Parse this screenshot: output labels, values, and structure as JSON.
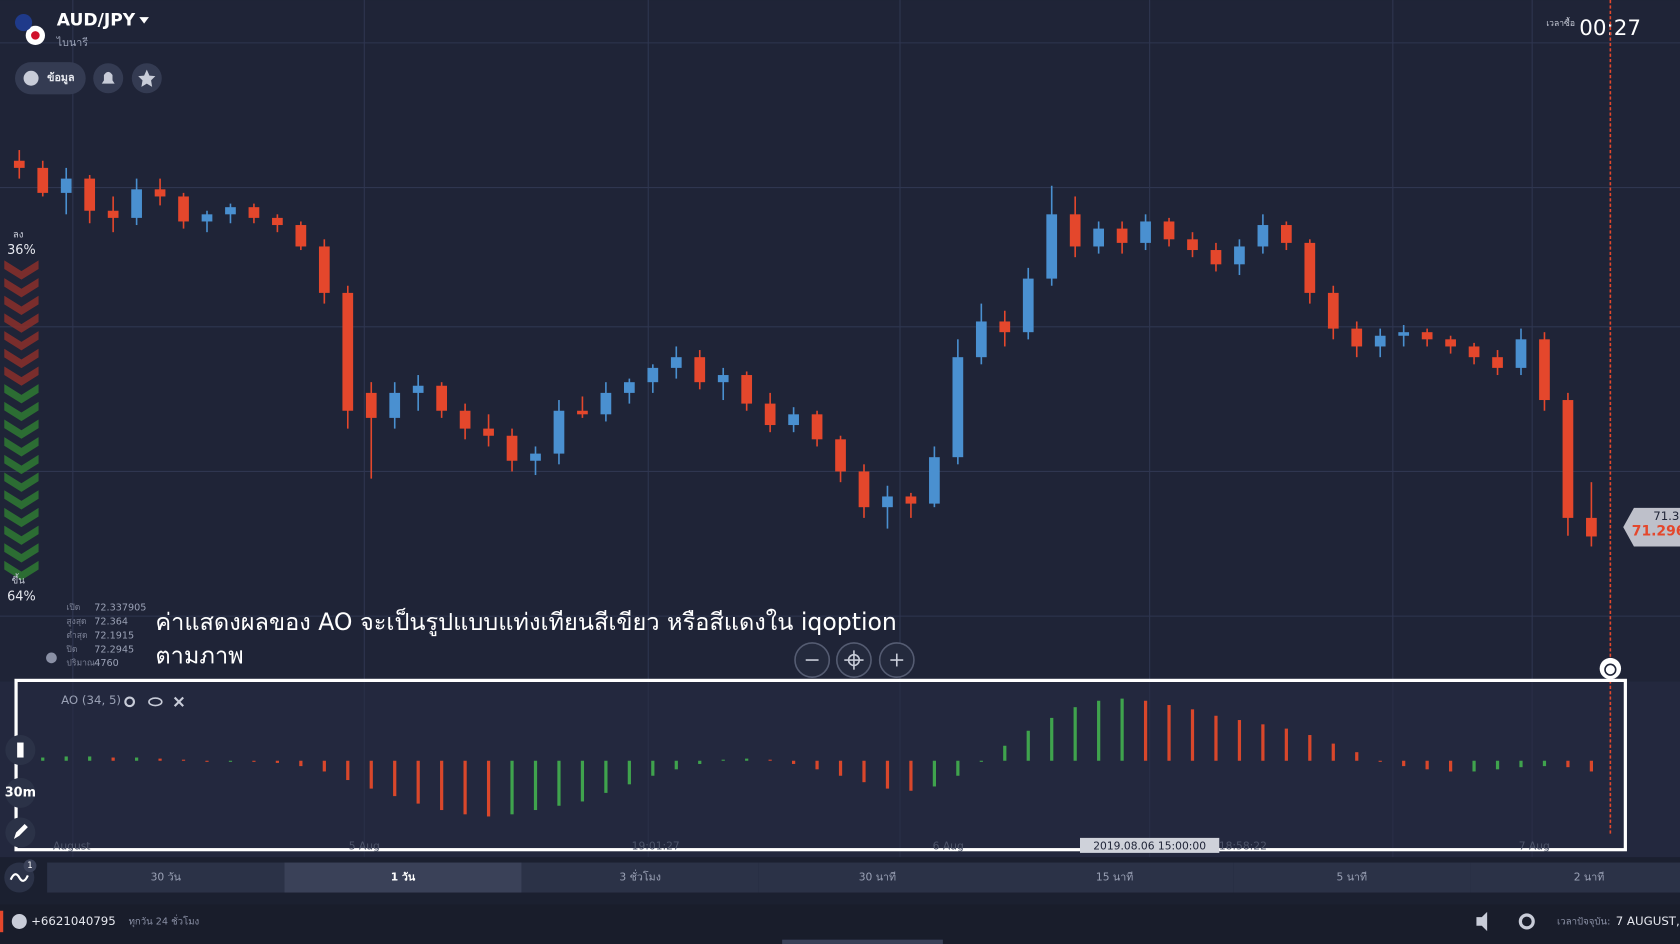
{
  "header": {
    "pair": "AUD/JPY",
    "subtitle": "ไบนารี",
    "info_button": "ข้อมูล",
    "timer_label": "เวลาซื้อ",
    "timer": "00:27"
  },
  "sentiment": {
    "down_label": "ลง",
    "down_pct": "36%",
    "up_label": "ขึ้น",
    "up_pct": "64%"
  },
  "ohlc_info": {
    "labels": [
      "เปิด",
      "สูงสุด",
      "ต่ำสุด",
      "ปิด",
      "ปริมาณ"
    ],
    "values": [
      72.337905,
      72.364,
      72.1915,
      72.2945,
      4760
    ]
  },
  "caption": [
    "ค่าแสดงผลของ AO จะเป็นรูปแบบแท่งเทียนสีเขียว หรือสีแดงใน iqoption",
    "ตามภาพ"
  ],
  "price_labels": [
    "71.3",
    "71.296"
  ],
  "time_labels": [
    "August",
    "5 Aug",
    "19:01:27",
    "6 Aug",
    "2019.08.06 15:00:00",
    "18:58:22",
    "7 Aug"
  ],
  "side_tools": {
    "timeframe": "30m",
    "badge": "1"
  },
  "periods": {
    "items": [
      "30 วัน",
      "1 วัน",
      "3 ชั่วโมง",
      "30 นาที",
      "15 นาที",
      "5 นาที",
      "2 นาที"
    ],
    "active": 1
  },
  "footer": {
    "phone": "+6621040795",
    "hours": "ทุกวัน 24 ชั่วโมง",
    "time_label": "เวลาปัจจุบัน:",
    "date": "7 AUGUST,"
  },
  "chart_data": [
    {
      "type": "candlestick",
      "up_color": "#4a90d0",
      "down_color": "#e4472c",
      "ylim": [
        71.0,
        73.7
      ],
      "ohlc": [
        [
          73.4,
          73.46,
          73.3,
          73.36
        ],
        [
          73.36,
          73.4,
          73.2,
          73.22
        ],
        [
          73.22,
          73.36,
          73.1,
          73.3
        ],
        [
          73.3,
          73.32,
          73.05,
          73.12
        ],
        [
          73.12,
          73.2,
          73.0,
          73.08
        ],
        [
          73.08,
          73.3,
          73.04,
          73.24
        ],
        [
          73.24,
          73.3,
          73.15,
          73.2
        ],
        [
          73.2,
          73.22,
          73.02,
          73.06
        ],
        [
          73.06,
          73.12,
          73.0,
          73.1
        ],
        [
          73.1,
          73.16,
          73.05,
          73.14
        ],
        [
          73.14,
          73.16,
          73.05,
          73.08
        ],
        [
          73.08,
          73.1,
          73.0,
          73.04
        ],
        [
          73.04,
          73.06,
          72.9,
          72.92
        ],
        [
          72.92,
          72.96,
          72.6,
          72.66
        ],
        [
          72.66,
          72.7,
          71.9,
          72.0
        ],
        [
          72.1,
          72.16,
          71.62,
          71.96
        ],
        [
          71.96,
          72.16,
          71.9,
          72.1
        ],
        [
          72.1,
          72.2,
          72.0,
          72.14
        ],
        [
          72.14,
          72.16,
          71.96,
          72.0
        ],
        [
          72.0,
          72.04,
          71.84,
          71.9
        ],
        [
          71.9,
          71.98,
          71.8,
          71.86
        ],
        [
          71.86,
          71.9,
          71.66,
          71.72
        ],
        [
          71.72,
          71.8,
          71.64,
          71.76
        ],
        [
          71.76,
          72.06,
          71.7,
          72.0
        ],
        [
          72.0,
          72.08,
          71.96,
          71.98
        ],
        [
          71.98,
          72.16,
          71.94,
          72.1
        ],
        [
          72.1,
          72.18,
          72.04,
          72.16
        ],
        [
          72.16,
          72.26,
          72.1,
          72.24
        ],
        [
          72.24,
          72.36,
          72.18,
          72.3
        ],
        [
          72.3,
          72.34,
          72.12,
          72.16
        ],
        [
          72.16,
          72.24,
          72.06,
          72.2
        ],
        [
          72.2,
          72.22,
          72.0,
          72.04
        ],
        [
          72.04,
          72.1,
          71.88,
          71.92
        ],
        [
          71.92,
          72.02,
          71.88,
          71.98
        ],
        [
          71.98,
          72.0,
          71.8,
          71.84
        ],
        [
          71.84,
          71.86,
          71.6,
          71.66
        ],
        [
          71.66,
          71.7,
          71.4,
          71.46
        ],
        [
          71.46,
          71.58,
          71.34,
          71.52
        ],
        [
          71.52,
          71.54,
          71.4,
          71.48
        ],
        [
          71.48,
          71.8,
          71.46,
          71.74
        ],
        [
          71.74,
          72.4,
          71.7,
          72.3
        ],
        [
          72.3,
          72.6,
          72.26,
          72.5
        ],
        [
          72.5,
          72.56,
          72.36,
          72.44
        ],
        [
          72.44,
          72.8,
          72.4,
          72.74
        ],
        [
          72.74,
          73.26,
          72.7,
          73.1
        ],
        [
          73.1,
          73.2,
          72.86,
          72.92
        ],
        [
          72.92,
          73.06,
          72.88,
          73.02
        ],
        [
          73.02,
          73.06,
          72.88,
          72.94
        ],
        [
          72.94,
          73.1,
          72.9,
          73.06
        ],
        [
          73.06,
          73.08,
          72.92,
          72.96
        ],
        [
          72.96,
          73.0,
          72.86,
          72.9
        ],
        [
          72.9,
          72.94,
          72.78,
          72.82
        ],
        [
          72.82,
          72.96,
          72.76,
          72.92
        ],
        [
          72.92,
          73.1,
          72.88,
          73.04
        ],
        [
          73.04,
          73.06,
          72.9,
          72.94
        ],
        [
          72.94,
          72.96,
          72.6,
          72.66
        ],
        [
          72.66,
          72.7,
          72.4,
          72.46
        ],
        [
          72.46,
          72.5,
          72.3,
          72.36
        ],
        [
          72.36,
          72.46,
          72.3,
          72.42
        ],
        [
          72.42,
          72.48,
          72.36,
          72.44
        ],
        [
          72.44,
          72.46,
          72.36,
          72.4
        ],
        [
          72.4,
          72.42,
          72.32,
          72.36
        ],
        [
          72.36,
          72.38,
          72.26,
          72.3
        ],
        [
          72.3,
          72.34,
          72.2,
          72.24
        ],
        [
          72.24,
          72.46,
          72.2,
          72.4
        ],
        [
          72.4,
          72.44,
          72.0,
          72.06
        ],
        [
          72.06,
          72.1,
          71.3,
          71.4
        ],
        [
          71.4,
          71.6,
          71.24,
          71.296
        ]
      ]
    },
    {
      "type": "ao",
      "title": "AO (34, 5)",
      "rise_color": "#3fa34d",
      "fall_color": "#d9472b",
      "ylim": [
        -0.7,
        0.7
      ],
      "values": [
        0.02,
        0.03,
        0.04,
        0.04,
        0.03,
        0.03,
        0.02,
        0.01,
        0.0,
        0.0,
        -0.01,
        -0.02,
        -0.05,
        -0.1,
        -0.18,
        -0.26,
        -0.33,
        -0.4,
        -0.46,
        -0.5,
        -0.52,
        -0.5,
        -0.46,
        -0.42,
        -0.38,
        -0.3,
        -0.22,
        -0.14,
        -0.08,
        -0.03,
        0.01,
        0.02,
        0.01,
        -0.03,
        -0.08,
        -0.14,
        -0.2,
        -0.26,
        -0.28,
        -0.24,
        -0.14,
        0.0,
        0.14,
        0.28,
        0.4,
        0.5,
        0.56,
        0.58,
        0.56,
        0.52,
        0.48,
        0.42,
        0.38,
        0.34,
        0.3,
        0.24,
        0.16,
        0.08,
        0.0,
        -0.05,
        -0.08,
        -0.1,
        -0.1,
        -0.08,
        -0.06,
        -0.05,
        -0.06,
        -0.1
      ]
    }
  ]
}
